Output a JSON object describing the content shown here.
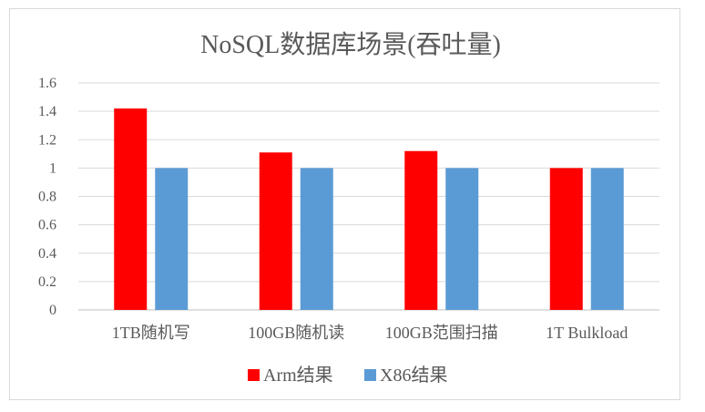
{
  "chart_data": {
    "type": "bar",
    "title": "NoSQL数据库场景(吞吐量)",
    "xlabel": "",
    "ylabel": "",
    "categories": [
      "1TB随机写",
      "100GB随机读",
      "100GB范围扫描",
      "1T Bulkload"
    ],
    "series": [
      {
        "name": "Arm结果",
        "color": "#ff0000",
        "values": [
          1.42,
          1.11,
          1.12,
          1.0
        ]
      },
      {
        "name": "X86结果",
        "color": "#5b9bd5",
        "values": [
          1.0,
          1.0,
          1.0,
          1.0
        ]
      }
    ],
    "ylim": [
      0,
      1.6
    ],
    "yticks": [
      "0",
      "0.2",
      "0.4",
      "0.6",
      "0.8",
      "1",
      "1.2",
      "1.4",
      "1.6"
    ],
    "grid": true,
    "legend_position": "bottom"
  }
}
